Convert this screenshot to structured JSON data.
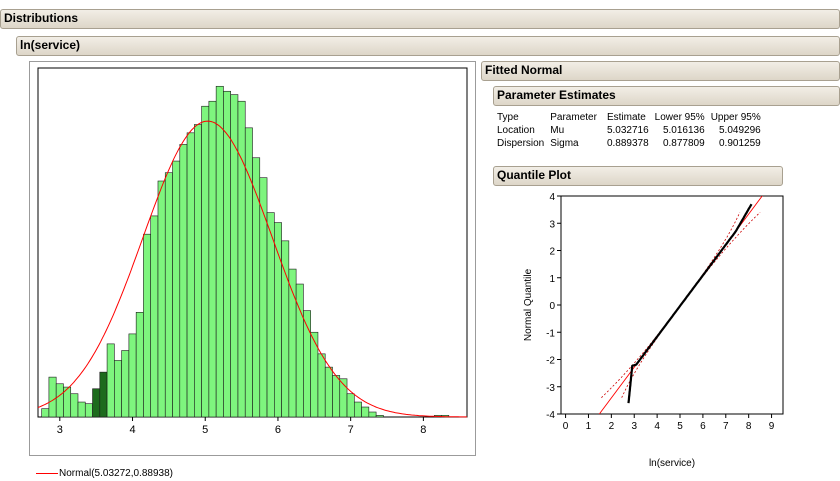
{
  "report": {
    "title": "Distributions",
    "column_title": "ln(service)"
  },
  "legend": {
    "label": "Normal(5.03272,0.88938)",
    "color": "#ff0000"
  },
  "fitted": {
    "title": "Fitted Normal",
    "parameter_estimates": {
      "title": "Parameter Estimates",
      "headers": [
        "Type",
        "Parameter",
        "Estimate",
        "Lower 95%",
        "Upper 95%"
      ],
      "rows": [
        [
          "Location",
          "Mu",
          "5.032716",
          "5.016136",
          "5.049296"
        ],
        [
          "Dispersion",
          "Sigma",
          "0.889378",
          "0.877809",
          "0.901259"
        ]
      ]
    },
    "quantile_plot": {
      "title": "Quantile Plot",
      "xlabel": "ln(service)",
      "ylabel": "Normal Quantile"
    }
  },
  "colors": {
    "header_bg": "#e6e0d4",
    "bar_fill": "#7ef57e",
    "bar_highlight": "#1d6b1d",
    "curve": "#ff0000"
  },
  "chart_data": [
    {
      "type": "bar",
      "title": "",
      "xlabel": "",
      "ylabel": "",
      "x_ticks": [
        3,
        4,
        5,
        6,
        7,
        8
      ],
      "xlim": [
        2.7,
        8.6
      ],
      "bin_width": 0.1,
      "bin_start": 2.75,
      "values": [
        5,
        24,
        20,
        18,
        14,
        9,
        8,
        17,
        27,
        44,
        34,
        40,
        50,
        63,
        110,
        121,
        142,
        147,
        154,
        164,
        171,
        176,
        187,
        190,
        199,
        196,
        194,
        190,
        174,
        156,
        144,
        123,
        117,
        106,
        89,
        80,
        64,
        51,
        38,
        30,
        25,
        23,
        14,
        9,
        6,
        3,
        1,
        0,
        0,
        0,
        0,
        0,
        0,
        0,
        1,
        1,
        0,
        0
      ],
      "highlighted_bins": [
        7,
        8
      ],
      "ylim": [
        0,
        210
      ],
      "series": [
        {
          "name": "Normal(5.03272,0.88938)",
          "mu": 5.03272,
          "sigma": 0.88938
        }
      ],
      "grid": false
    },
    {
      "type": "scatter",
      "title": "Quantile Plot",
      "xlabel": "ln(service)",
      "ylabel": "Normal Quantile",
      "xlim": [
        -0.2,
        9.5
      ],
      "ylim": [
        -4,
        4
      ],
      "x_ticks": [
        0,
        1,
        2,
        3,
        4,
        5,
        6,
        7,
        8,
        9
      ],
      "y_ticks": [
        -4,
        -3,
        -2,
        -1,
        0,
        1,
        2,
        3,
        4
      ],
      "fit_line": {
        "mu": 5.03272,
        "sigma": 0.88938
      },
      "points_range": {
        "x": [
          2.75,
          8.45
        ],
        "y": [
          -3.6,
          3.7
        ]
      },
      "grid": false
    }
  ]
}
